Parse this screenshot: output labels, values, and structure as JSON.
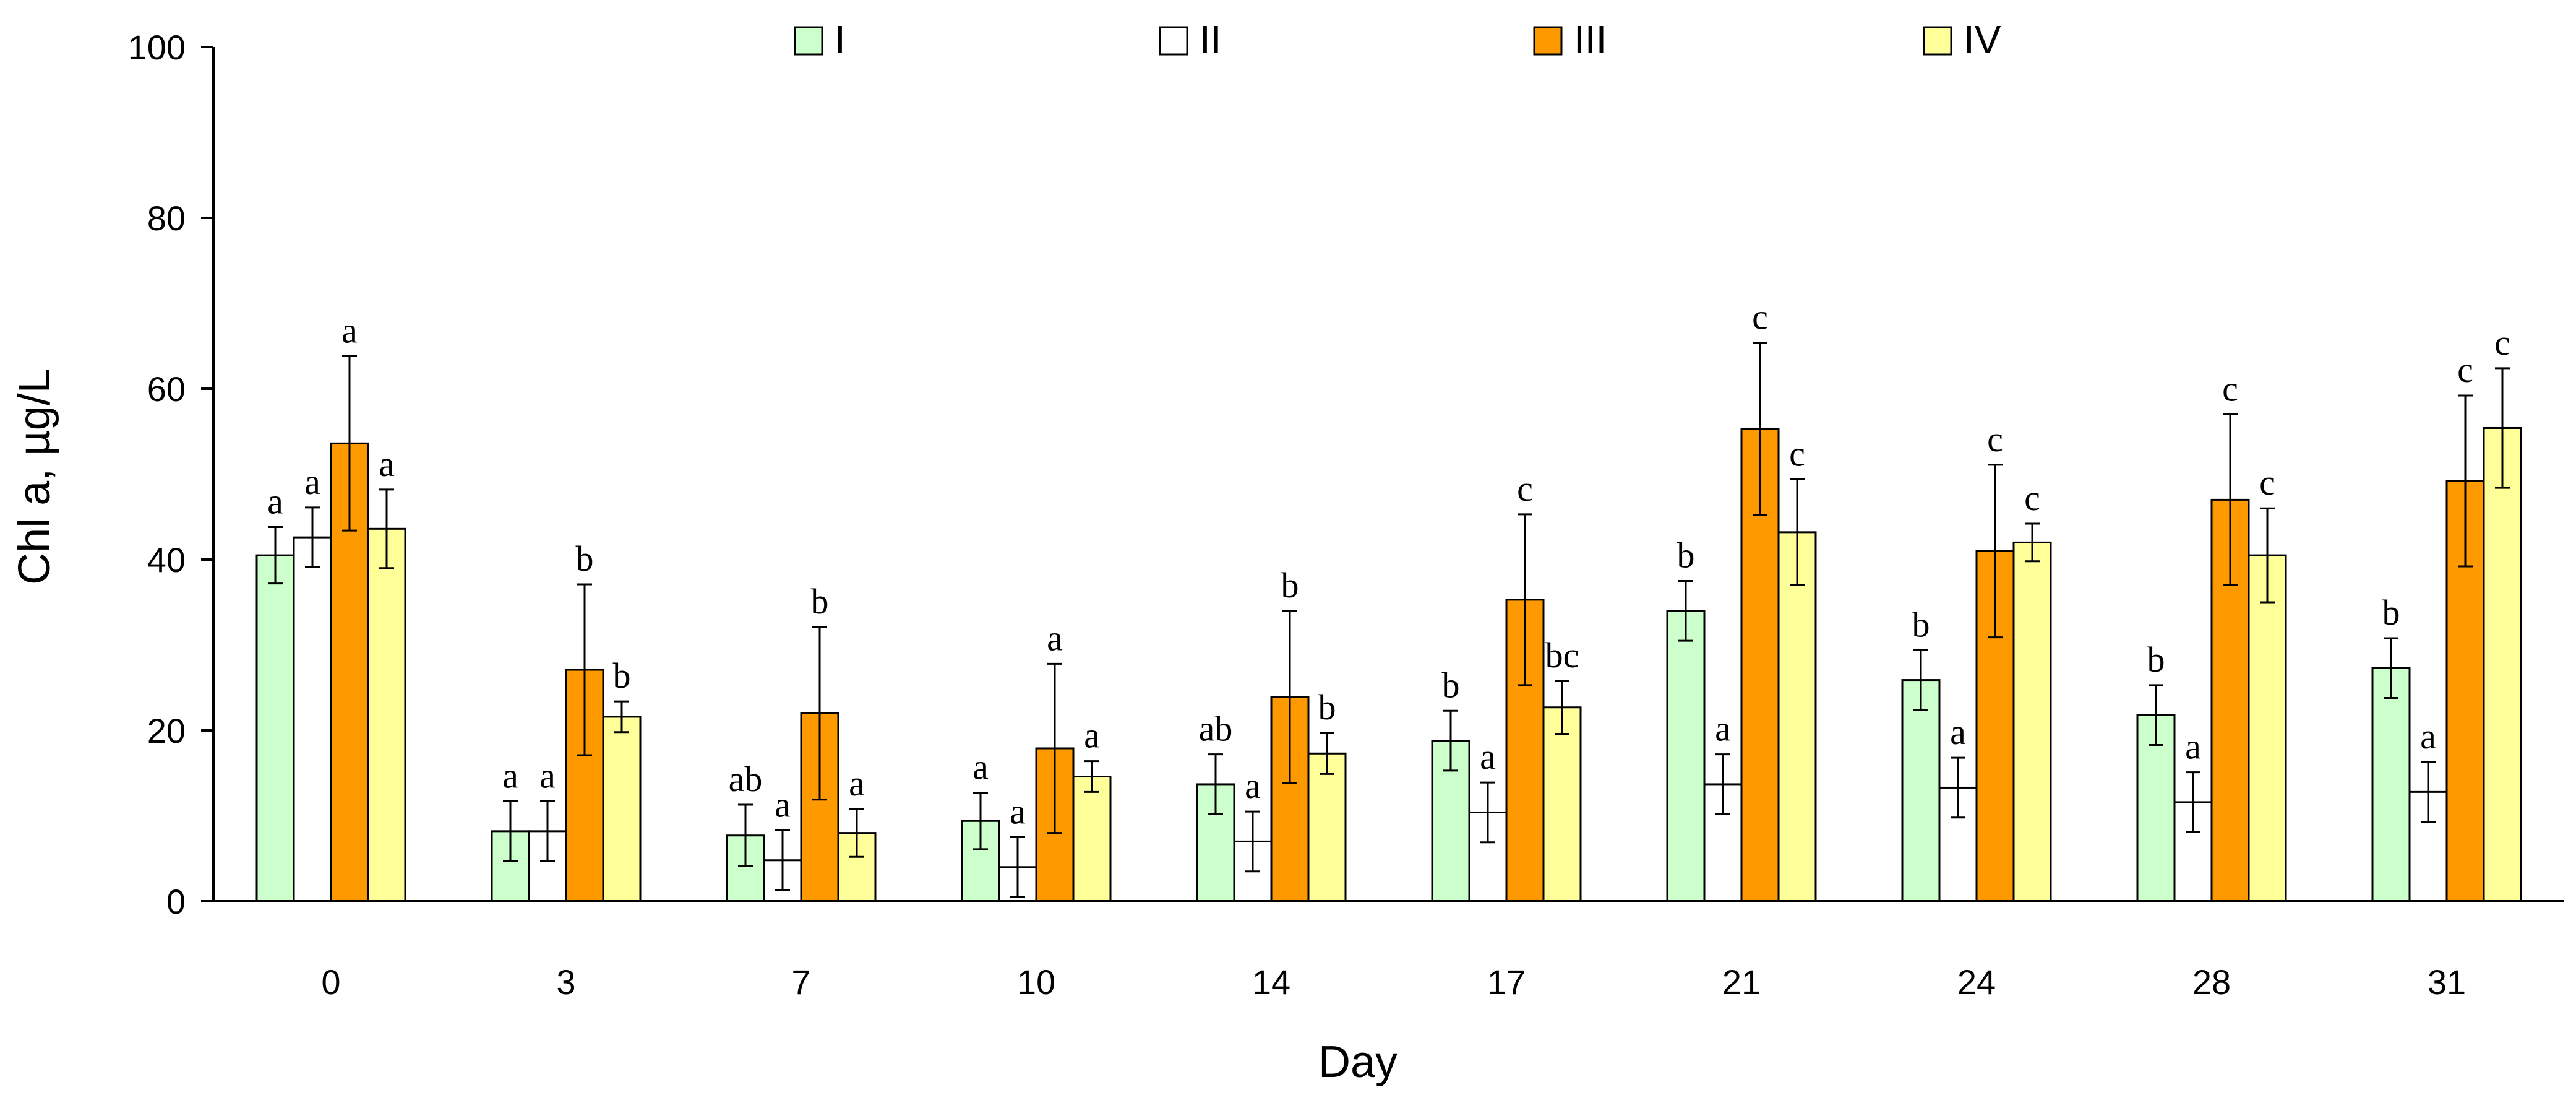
{
  "chart_data": {
    "type": "bar",
    "title": "",
    "xlabel": "Day",
    "ylabel": "Chl a, µg/L",
    "ylim": [
      0,
      100
    ],
    "yticks": [
      0,
      20,
      40,
      60,
      80,
      100
    ],
    "grid": false,
    "legend_position": "top",
    "categories": [
      "0",
      "3",
      "7",
      "10",
      "14",
      "17",
      "21",
      "24",
      "28",
      "31"
    ],
    "series": [
      {
        "name": "I",
        "color": "#ccffcc",
        "values": [
          40.5,
          8.2,
          7.7,
          9.4,
          13.7,
          18.8,
          34.0,
          25.9,
          21.8,
          27.3
        ],
        "errors": [
          3.3,
          3.5,
          3.6,
          3.3,
          3.5,
          3.5,
          3.5,
          3.5,
          3.5,
          3.5
        ],
        "sig": [
          "a",
          "a",
          "ab",
          "a",
          "ab",
          "b",
          "b",
          "b",
          "b",
          "b"
        ]
      },
      {
        "name": "II",
        "color": "#ffffff",
        "values": [
          42.6,
          8.2,
          4.8,
          4.0,
          7.0,
          10.4,
          13.7,
          13.3,
          11.6,
          12.8
        ],
        "errors": [
          3.5,
          3.5,
          3.5,
          3.5,
          3.5,
          3.5,
          3.5,
          3.5,
          3.5,
          3.5
        ],
        "sig": [
          "a",
          "a",
          "a",
          "a",
          "a",
          "a",
          "a",
          "a",
          "a",
          "a"
        ]
      },
      {
        "name": "III",
        "color": "#ff9900",
        "values": [
          53.6,
          27.1,
          22.0,
          17.9,
          23.9,
          35.3,
          55.3,
          41.0,
          47.0,
          49.2
        ],
        "errors": [
          10.2,
          10.0,
          10.1,
          9.9,
          10.1,
          10.0,
          10.1,
          10.1,
          10.0,
          10.0
        ],
        "sig": [
          "a",
          "b",
          "b",
          "a",
          "b",
          "c",
          "c",
          "c",
          "c",
          "c"
        ]
      },
      {
        "name": "IV",
        "color": "#ffff99",
        "values": [
          43.6,
          21.6,
          8.0,
          14.6,
          17.3,
          22.7,
          43.2,
          42.0,
          40.5,
          55.4
        ],
        "errors": [
          4.6,
          1.8,
          2.8,
          1.8,
          2.4,
          3.1,
          6.2,
          2.2,
          5.5,
          7.0
        ],
        "sig": [
          "a",
          "b",
          "a",
          "a",
          "b",
          "bc",
          "c",
          "c",
          "c",
          "c"
        ]
      }
    ]
  }
}
